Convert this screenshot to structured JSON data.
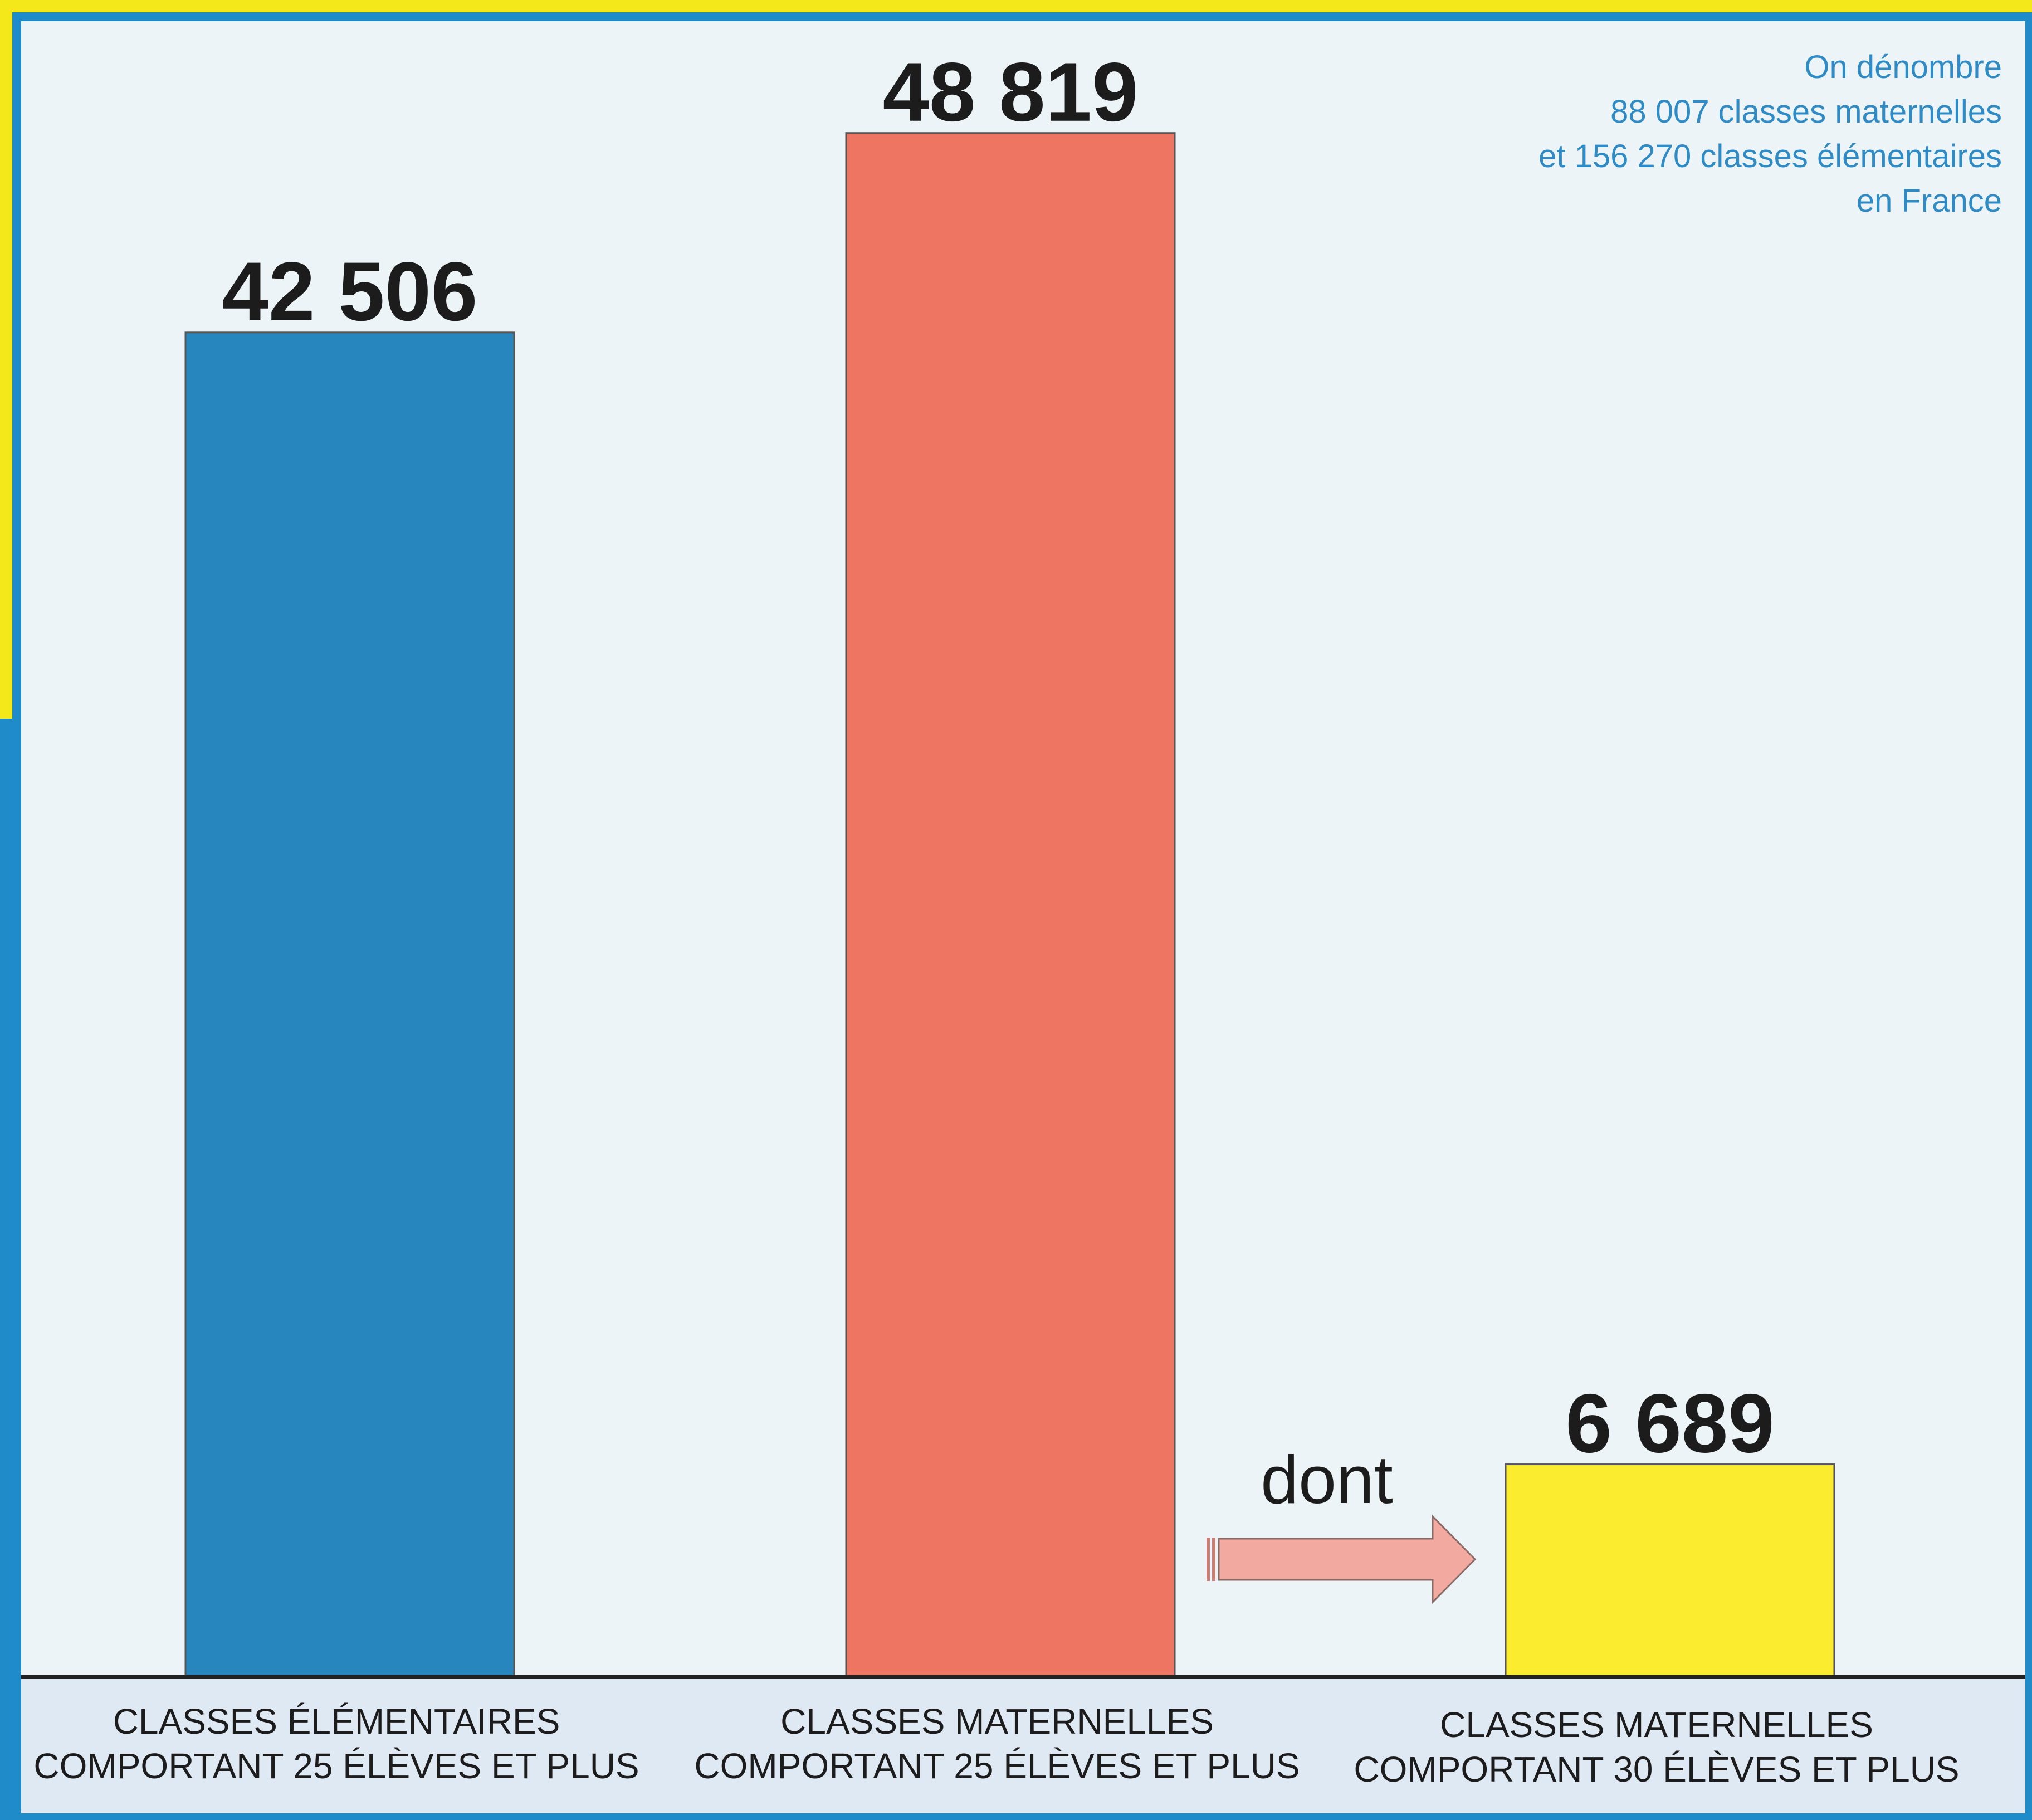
{
  "chart_data": {
    "type": "bar",
    "categories": [
      [
        "CLASSES ÉLÉMENTAIRES",
        "COMPORTANT 25 ÉLÈVES ET PLUS"
      ],
      [
        "CLASSES MATERNELLES",
        "COMPORTANT 25 ÉLÈVES ET PLUS"
      ],
      [
        "CLASSES MATERNELLES",
        "COMPORTANT 30 ÉLÈVES ET PLUS"
      ]
    ],
    "values": [
      42506,
      48819,
      6689
    ],
    "value_labels": [
      "42 506",
      "48 819",
      "6 689"
    ],
    "bar_colors": [
      "#2886bf",
      "#ee7561",
      "#fbec2f"
    ],
    "title": "",
    "xlabel": "",
    "ylabel": "",
    "ylim": [
      0,
      51000
    ],
    "grid": false,
    "annotation": {
      "arrow_label": "dont",
      "from_category": 1,
      "to_category": 2,
      "arrow_color": "#f2aaa0"
    },
    "note_lines": [
      "On dénombre",
      "88 007 classes maternelles",
      "et 156 270 classes élémentaires",
      "en France"
    ],
    "colors": {
      "plot_bg": "#edf4f8",
      "label_band_bg": "#dfe9f3",
      "border_blue": "#1f8bc8",
      "border_yellow": "#f4e81b",
      "note_text": "#2e8bc6"
    }
  }
}
